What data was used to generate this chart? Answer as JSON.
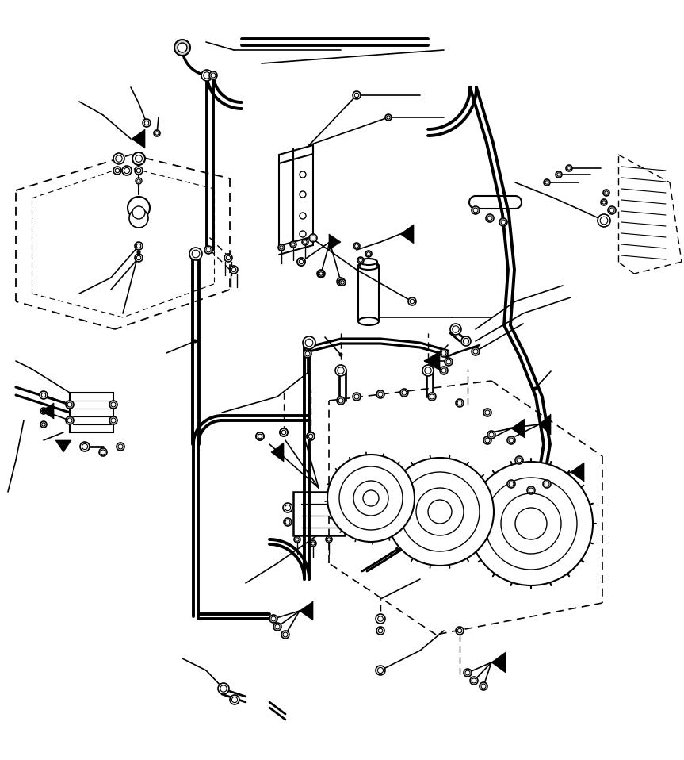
{
  "bg_color": "#ffffff",
  "line_color": "#000000",
  "fig_width": 8.63,
  "fig_height": 9.58,
  "dpi": 100,
  "main_hose_lw": 2.8,
  "thin_lw": 1.2,
  "component_lw": 1.5
}
